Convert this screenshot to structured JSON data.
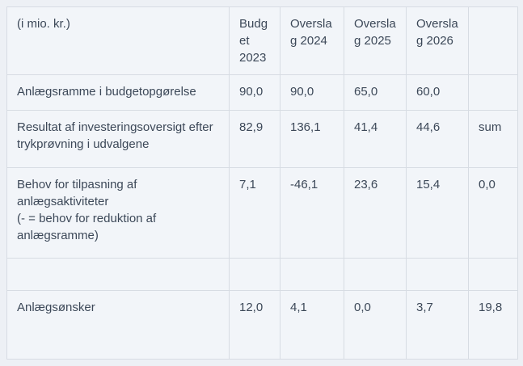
{
  "table": {
    "unit_label": "(i mio. kr.)",
    "columns": [
      "Budget 2023",
      "Overslag 2024",
      "Overslag 2025",
      "Overslag 2026",
      ""
    ],
    "rows": [
      {
        "label_lines": [
          "Anlægsramme i budgetopgørelse"
        ],
        "values": [
          "90,0",
          "90,0",
          "65,0",
          "60,0",
          ""
        ]
      },
      {
        "label_lines": [
          "Resultat af investeringsoversigt efter trykprøvning i udvalgene"
        ],
        "values": [
          "82,9",
          "136,1",
          "41,4",
          "44,6",
          "sum"
        ]
      },
      {
        "label_lines": [
          "Behov for tilpasning af anlægsaktiviteter",
          "(- = behov for reduktion af anlægsramme)"
        ],
        "values": [
          "7,1",
          "-46,1",
          "23,6",
          "15,4",
          "0,0"
        ]
      },
      {
        "label_lines": [],
        "values": [
          "",
          "",
          "",
          "",
          ""
        ]
      },
      {
        "label_lines": [
          "Anlægsønsker"
        ],
        "values": [
          "12,0",
          "4,1",
          "0,0",
          "3,7",
          "19,8"
        ]
      }
    ]
  },
  "colors": {
    "page_background": "#edf0f5",
    "cell_background": "#f2f5f9",
    "border": "#d7dce3",
    "outer_border": "#c7cdd6",
    "text": "#3c4858"
  }
}
